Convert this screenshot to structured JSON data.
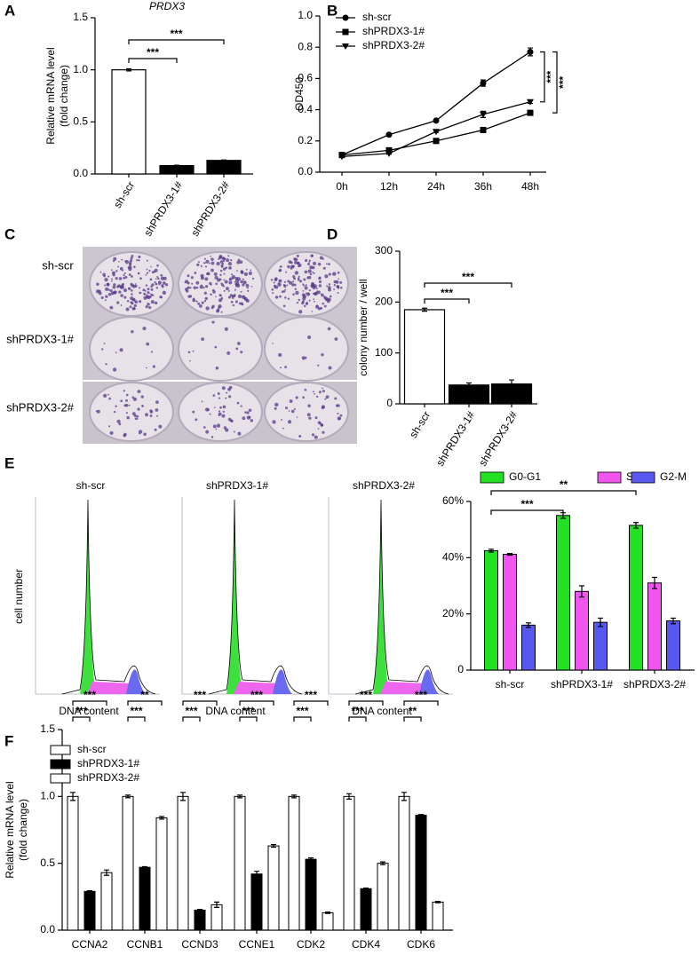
{
  "chart_data": [
    {
      "panel": "A",
      "type": "bar",
      "title": "PRDX3",
      "ylabel": [
        "Relative mRNA level",
        "(fold change)"
      ],
      "categories": [
        "sh-scr",
        "shPRDX3-1#",
        "shPRDX3-2#"
      ],
      "values": [
        1.0,
        0.08,
        0.13
      ],
      "errors": [
        0.01,
        0.004,
        0.004
      ],
      "colors": [
        "#ffffff",
        "#000000",
        "#000000"
      ],
      "ylim": [
        0,
        1.5
      ],
      "yticks": [
        {
          "value": 0,
          "label": "0.0"
        },
        0.5,
        {
          "value": 1,
          "label": "1.0"
        },
        1.5
      ],
      "annotations": [
        "***",
        "***"
      ]
    },
    {
      "panel": "B",
      "type": "line",
      "ylabel": "OD450",
      "categories": [
        "0h",
        "12h",
        "24h",
        "36h",
        "48h"
      ],
      "series": [
        {
          "name": "sh-scr",
          "color": "#000000",
          "marker": "circle",
          "values": [
            0.11,
            0.24,
            0.33,
            0.57,
            0.77
          ],
          "errors": [
            0.005,
            0.005,
            0.005,
            0.02,
            0.025
          ]
        },
        {
          "name": "shPRDX3-1#",
          "color": "#000000",
          "marker": "square",
          "values": [
            0.11,
            0.14,
            0.2,
            0.27,
            0.38
          ],
          "errors": [
            0.005,
            0.005,
            0.005,
            0.005,
            0.01
          ]
        },
        {
          "name": "shPRDX3-2#",
          "color": "#000000",
          "marker": "triangle-down",
          "values": [
            0.1,
            0.12,
            0.26,
            0.37,
            0.45
          ],
          "errors": [
            0.005,
            0.005,
            0.005,
            0.02,
            0.01
          ]
        }
      ],
      "ylim": [
        0,
        1.0
      ],
      "yticks": [
        {
          "value": 0,
          "label": "0.0"
        },
        0.2,
        0.4,
        0.6,
        0.8,
        {
          "value": 1,
          "label": "1.0"
        }
      ],
      "annotations": [
        "***",
        "***"
      ]
    },
    {
      "panel": "C",
      "type": "image",
      "row_labels": [
        "sh-scr",
        "shPRDX3-1#",
        "shPRDX3-2#"
      ]
    },
    {
      "panel": "D",
      "type": "bar",
      "ylabel": "colony number / well",
      "categories": [
        "sh-scr",
        "shPRDX3-1#",
        "shPRDX3-2#"
      ],
      "values": [
        185,
        37,
        39
      ],
      "errors": [
        3,
        4,
        8
      ],
      "colors": [
        "#ffffff",
        "#000000",
        "#000000"
      ],
      "ylim": [
        0,
        300
      ],
      "yticks": [
        0,
        100,
        200,
        300
      ],
      "annotations": [
        "***",
        "***"
      ]
    },
    {
      "panel": "E",
      "type": "flow-histogram",
      "titles": [
        "sh-scr",
        "shPRDX3-1#",
        "shPRDX3-2#"
      ],
      "xlabel": "DNA content",
      "ylabel": "cell number"
    },
    {
      "type": "grouped-bar",
      "categories": [
        "sh-scr",
        "shPRDX3-1#",
        "shPRDX3-2#"
      ],
      "series": [
        {
          "name": "G0-G1",
          "color": "#22e022",
          "values": [
            42.5,
            55,
            51.5
          ],
          "errors": [
            0.5,
            1,
            1
          ]
        },
        {
          "name": "S",
          "color": "#f055f0",
          "values": [
            41.2,
            28,
            31
          ],
          "errors": [
            0.3,
            2,
            2
          ]
        },
        {
          "name": "G2-M",
          "color": "#5858f0",
          "values": [
            16,
            17,
            17.5
          ],
          "errors": [
            0.8,
            1.5,
            1
          ]
        }
      ],
      "ylim": [
        0,
        60
      ],
      "yticks": [
        0,
        {
          "value": 20,
          "label": "20%"
        },
        {
          "value": 40,
          "label": "40%"
        },
        {
          "value": 60,
          "label": "60%"
        }
      ],
      "annotations": [
        "**",
        "***"
      ]
    },
    {
      "panel": "F",
      "type": "grouped-bar",
      "ylabel": [
        "Relative mRNA level",
        "(fold change)"
      ],
      "categories": [
        "CCNA2",
        "CCNB1",
        "CCND3",
        "CCNE1",
        "CDK2",
        "CDK4",
        "CDK6"
      ],
      "series": [
        {
          "name": "sh-scr",
          "color": "#ffffff",
          "values": [
            1,
            1,
            1,
            1,
            1,
            1,
            1
          ],
          "errors": [
            0.03,
            0.01,
            0.03,
            0.01,
            0.01,
            0.02,
            0.03
          ]
        },
        {
          "name": "shPRDX3-1#",
          "color": "#000000",
          "values": [
            0.29,
            0.47,
            0.15,
            0.42,
            0.53,
            0.31,
            0.86
          ],
          "errors": [
            0.005,
            0.005,
            0.005,
            0.02,
            0.01,
            0.005,
            0.005
          ]
        },
        {
          "name": "shPRDX3-2#",
          "color": "#ffffff",
          "values": [
            0.43,
            0.84,
            0.19,
            0.63,
            0.13,
            0.5,
            0.21
          ],
          "errors": [
            0.02,
            0.01,
            0.02,
            0.01,
            0.005,
            0.01,
            0.005
          ]
        }
      ],
      "ylim": [
        0,
        1.5
      ],
      "yticks": [
        {
          "value": 0,
          "label": "0.0"
        },
        0.5,
        {
          "value": 1,
          "label": "1.0"
        },
        1.5
      ],
      "annotations": [
        "***",
        "***",
        "**",
        "***",
        "***",
        "***",
        "***",
        "***",
        "***",
        "***",
        "***",
        "***",
        "***",
        "**"
      ]
    }
  ]
}
